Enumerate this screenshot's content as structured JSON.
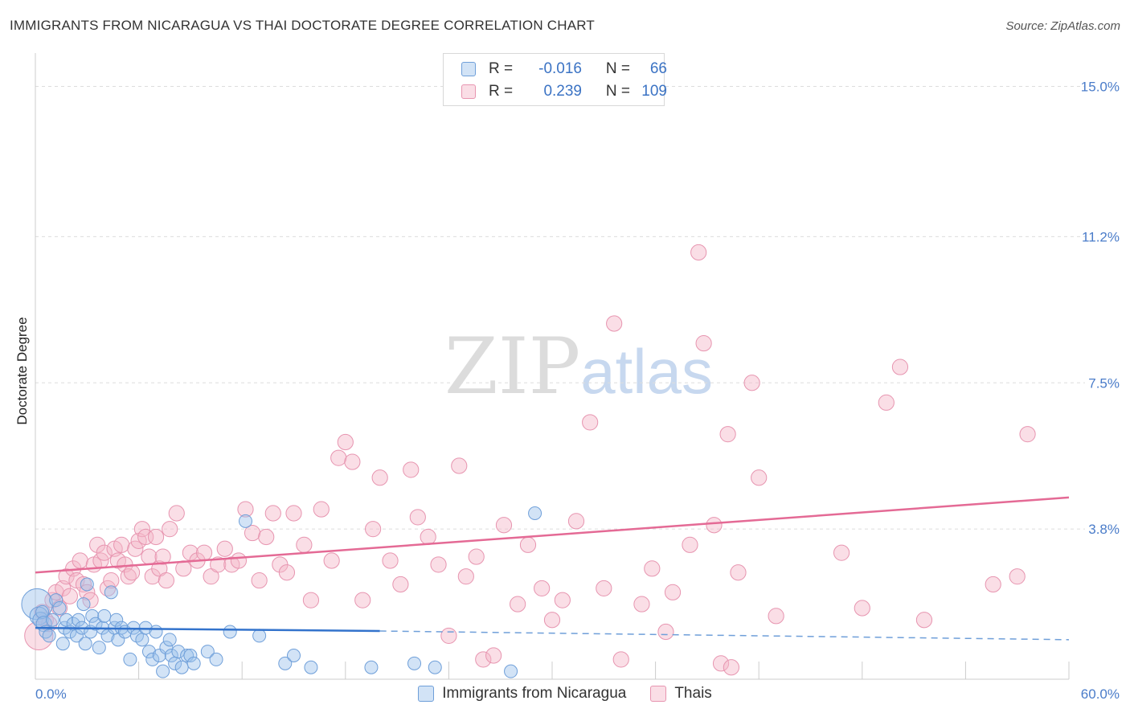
{
  "title": "IMMIGRANTS FROM NICARAGUA VS THAI DOCTORATE DEGREE CORRELATION CHART",
  "source": "Source: ZipAtlas.com",
  "watermark": {
    "zip": "ZIP",
    "atlas": "atlas"
  },
  "legend": {
    "rows": [
      {
        "r_label": "R =",
        "r_value": "-0.016",
        "n_label": "N =",
        "n_value": "66",
        "color": "#9cc0ea"
      },
      {
        "r_label": "R =",
        "r_value": "0.239",
        "n_label": "N =",
        "n_value": "109",
        "color": "#f4b5c8"
      }
    ]
  },
  "bottom_legend": [
    {
      "label": "Immigrants from Nicaragua",
      "color": "#9cc0ea"
    },
    {
      "label": "Thais",
      "color": "#f4b5c8"
    }
  ],
  "colors": {
    "blue_fill": "rgba(156,192,234,0.45)",
    "blue_stroke": "#6f9fd9",
    "blue_line": "#3373cc",
    "pink_fill": "rgba(244,181,200,0.45)",
    "pink_stroke": "#e795b0",
    "pink_line": "#e46a95",
    "axis_tick_text": "#4a7cc9",
    "grid": "#dddddd"
  },
  "chart_data": {
    "type": "scatter",
    "title": "IMMIGRANTS FROM NICARAGUA VS THAI DOCTORATE DEGREE CORRELATION CHART",
    "xlabel": "",
    "ylabel": "Doctorate Degree",
    "xlim": [
      0,
      60
    ],
    "ylim": [
      0,
      15.6
    ],
    "x_tick_labels": [
      "0.0%",
      "60.0%"
    ],
    "y_ticks": [
      3.8,
      7.5,
      11.2,
      15.0
    ],
    "y_tick_labels": [
      "3.8%",
      "7.5%",
      "11.2%",
      "15.0%"
    ],
    "grid": true,
    "legend_placement": "top-center",
    "series": [
      {
        "name": "Immigrants from Nicaragua",
        "trend": {
          "x": [
            0,
            20
          ],
          "y": [
            1.3,
            1.22
          ],
          "dashed_to_x": 60,
          "dashed_end_y": 1.0
        },
        "points": [
          [
            0.1,
            1.9,
            24
          ],
          [
            0.2,
            1.6,
            14
          ],
          [
            0.3,
            1.5,
            12
          ],
          [
            0.4,
            1.7,
            10
          ],
          [
            0.5,
            1.4,
            12
          ],
          [
            0.6,
            1.2,
            10
          ],
          [
            0.8,
            1.1,
            10
          ],
          [
            1.0,
            1.5,
            10
          ],
          [
            1.2,
            2.0,
            10
          ],
          [
            1.4,
            1.8,
            10
          ],
          [
            1.6,
            0.9,
            10
          ],
          [
            1.7,
            1.3,
            10
          ],
          [
            1.8,
            1.5,
            10
          ],
          [
            2.0,
            1.2,
            10
          ],
          [
            2.2,
            1.4,
            10
          ],
          [
            2.4,
            1.1,
            10
          ],
          [
            2.5,
            1.5,
            10
          ],
          [
            2.7,
            1.3,
            10
          ],
          [
            2.8,
            1.9,
            10
          ],
          [
            2.9,
            0.9,
            10
          ],
          [
            3.0,
            2.4,
            10
          ],
          [
            3.2,
            1.2,
            10
          ],
          [
            3.3,
            1.6,
            10
          ],
          [
            3.5,
            1.4,
            10
          ],
          [
            3.7,
            0.8,
            10
          ],
          [
            3.9,
            1.3,
            10
          ],
          [
            4.0,
            1.6,
            10
          ],
          [
            4.2,
            1.1,
            10
          ],
          [
            4.4,
            2.2,
            10
          ],
          [
            4.6,
            1.3,
            10
          ],
          [
            4.7,
            1.5,
            10
          ],
          [
            4.8,
            1.0,
            10
          ],
          [
            5.0,
            1.3,
            10
          ],
          [
            5.2,
            1.2,
            10
          ],
          [
            5.5,
            0.5,
            10
          ],
          [
            5.7,
            1.3,
            10
          ],
          [
            5.9,
            1.1,
            10
          ],
          [
            6.2,
            1.0,
            10
          ],
          [
            6.4,
            1.3,
            10
          ],
          [
            6.6,
            0.7,
            10
          ],
          [
            6.8,
            0.5,
            10
          ],
          [
            7.0,
            1.2,
            10
          ],
          [
            7.2,
            0.6,
            10
          ],
          [
            7.4,
            0.2,
            10
          ],
          [
            7.6,
            0.8,
            10
          ],
          [
            7.8,
            1.0,
            10
          ],
          [
            7.9,
            0.6,
            10
          ],
          [
            8.1,
            0.4,
            10
          ],
          [
            8.3,
            0.7,
            10
          ],
          [
            8.5,
            0.3,
            10
          ],
          [
            8.8,
            0.6,
            10
          ],
          [
            9.0,
            0.6,
            10
          ],
          [
            9.2,
            0.4,
            10
          ],
          [
            10.0,
            0.7,
            10
          ],
          [
            10.5,
            0.5,
            10
          ],
          [
            11.3,
            1.2,
            10
          ],
          [
            12.2,
            4.0,
            10
          ],
          [
            13.0,
            1.1,
            10
          ],
          [
            14.5,
            0.4,
            10
          ],
          [
            15.0,
            0.6,
            10
          ],
          [
            16.0,
            0.3,
            10
          ],
          [
            19.5,
            0.3,
            10
          ],
          [
            22.0,
            0.4,
            10
          ],
          [
            23.2,
            0.3,
            10
          ],
          [
            27.6,
            0.2,
            10
          ],
          [
            29.0,
            4.2,
            10
          ]
        ]
      },
      {
        "name": "Thais",
        "trend": {
          "x": [
            0,
            60
          ],
          "y": [
            2.7,
            4.6
          ]
        },
        "points": [
          [
            0.2,
            1.1,
            22
          ],
          [
            0.4,
            1.7,
            12
          ],
          [
            0.6,
            1.5,
            12
          ],
          [
            0.8,
            1.4,
            12
          ],
          [
            1.0,
            2.0,
            12
          ],
          [
            1.2,
            2.2,
            12
          ],
          [
            1.4,
            1.8,
            12
          ],
          [
            1.6,
            2.3,
            12
          ],
          [
            1.8,
            2.6,
            12
          ],
          [
            2.0,
            2.1,
            12
          ],
          [
            2.2,
            2.8,
            12
          ],
          [
            2.4,
            2.5,
            12
          ],
          [
            2.6,
            3.0,
            12
          ],
          [
            2.8,
            2.4,
            12
          ],
          [
            3.0,
            2.2,
            12
          ],
          [
            3.2,
            2.0,
            12
          ],
          [
            3.4,
            2.9,
            12
          ],
          [
            3.6,
            3.4,
            12
          ],
          [
            3.8,
            3.0,
            12
          ],
          [
            4.0,
            3.2,
            12
          ],
          [
            4.2,
            2.3,
            12
          ],
          [
            4.4,
            2.5,
            12
          ],
          [
            4.6,
            3.3,
            12
          ],
          [
            4.8,
            3.0,
            12
          ],
          [
            5.0,
            3.4,
            12
          ],
          [
            5.2,
            2.9,
            12
          ],
          [
            5.4,
            2.6,
            12
          ],
          [
            5.6,
            2.7,
            12
          ],
          [
            5.8,
            3.3,
            12
          ],
          [
            6.0,
            3.5,
            12
          ],
          [
            6.2,
            3.8,
            12
          ],
          [
            6.4,
            3.6,
            12
          ],
          [
            6.6,
            3.1,
            12
          ],
          [
            6.8,
            2.6,
            12
          ],
          [
            7.0,
            3.6,
            12
          ],
          [
            7.2,
            2.8,
            12
          ],
          [
            7.4,
            3.1,
            12
          ],
          [
            7.6,
            2.5,
            12
          ],
          [
            7.8,
            3.8,
            12
          ],
          [
            8.2,
            4.2,
            12
          ],
          [
            8.6,
            2.8,
            12
          ],
          [
            9.0,
            3.2,
            12
          ],
          [
            9.4,
            3.0,
            12
          ],
          [
            9.8,
            3.2,
            12
          ],
          [
            10.2,
            2.6,
            12
          ],
          [
            10.6,
            2.9,
            12
          ],
          [
            11.0,
            3.3,
            12
          ],
          [
            11.4,
            2.9,
            12
          ],
          [
            11.8,
            3.0,
            12
          ],
          [
            12.2,
            4.3,
            12
          ],
          [
            12.6,
            3.7,
            12
          ],
          [
            13.0,
            2.5,
            12
          ],
          [
            13.4,
            3.6,
            12
          ],
          [
            13.8,
            4.2,
            12
          ],
          [
            14.2,
            2.9,
            12
          ],
          [
            14.6,
            2.7,
            12
          ],
          [
            15.0,
            4.2,
            12
          ],
          [
            15.6,
            3.4,
            12
          ],
          [
            16.0,
            2.0,
            12
          ],
          [
            16.6,
            4.3,
            12
          ],
          [
            17.2,
            3.0,
            12
          ],
          [
            17.6,
            5.6,
            12
          ],
          [
            18.0,
            6.0,
            12
          ],
          [
            18.4,
            5.5,
            12
          ],
          [
            19.0,
            2.0,
            12
          ],
          [
            19.6,
            3.8,
            12
          ],
          [
            20.0,
            5.1,
            12
          ],
          [
            20.6,
            3.0,
            12
          ],
          [
            21.2,
            2.4,
            12
          ],
          [
            21.8,
            5.3,
            12
          ],
          [
            22.2,
            4.1,
            12
          ],
          [
            22.8,
            3.6,
            12
          ],
          [
            23.4,
            2.9,
            12
          ],
          [
            24.0,
            1.1,
            12
          ],
          [
            24.6,
            5.4,
            12
          ],
          [
            25.0,
            2.6,
            12
          ],
          [
            25.6,
            3.1,
            12
          ],
          [
            26.0,
            0.5,
            12
          ],
          [
            26.6,
            0.6,
            12
          ],
          [
            27.2,
            3.9,
            12
          ],
          [
            28.0,
            1.9,
            12
          ],
          [
            28.6,
            3.4,
            12
          ],
          [
            29.4,
            2.3,
            12
          ],
          [
            30.0,
            1.5,
            12
          ],
          [
            30.6,
            2.0,
            12
          ],
          [
            31.4,
            4.0,
            12
          ],
          [
            32.2,
            6.5,
            12
          ],
          [
            33.0,
            2.3,
            12
          ],
          [
            33.6,
            9.0,
            12
          ],
          [
            34.0,
            0.5,
            12
          ],
          [
            35.2,
            1.9,
            12
          ],
          [
            35.8,
            2.8,
            12
          ],
          [
            36.6,
            1.2,
            12
          ],
          [
            37.0,
            2.2,
            12
          ],
          [
            38.0,
            3.4,
            12
          ],
          [
            38.8,
            8.5,
            12
          ],
          [
            39.4,
            3.9,
            12
          ],
          [
            40.2,
            6.2,
            12
          ],
          [
            40.8,
            2.7,
            12
          ],
          [
            41.6,
            7.5,
            12
          ],
          [
            42.0,
            5.1,
            12
          ],
          [
            43.0,
            1.6,
            12
          ],
          [
            46.8,
            3.2,
            12
          ],
          [
            48.0,
            1.8,
            12
          ],
          [
            49.4,
            7.0,
            12
          ],
          [
            50.2,
            7.9,
            12
          ],
          [
            51.6,
            1.5,
            12
          ],
          [
            55.6,
            2.4,
            12
          ],
          [
            57.0,
            2.6,
            12
          ],
          [
            57.6,
            6.2,
            12
          ],
          [
            38.5,
            10.8,
            12
          ],
          [
            39.8,
            0.4,
            12
          ],
          [
            40.4,
            0.3,
            12
          ]
        ]
      }
    ]
  }
}
